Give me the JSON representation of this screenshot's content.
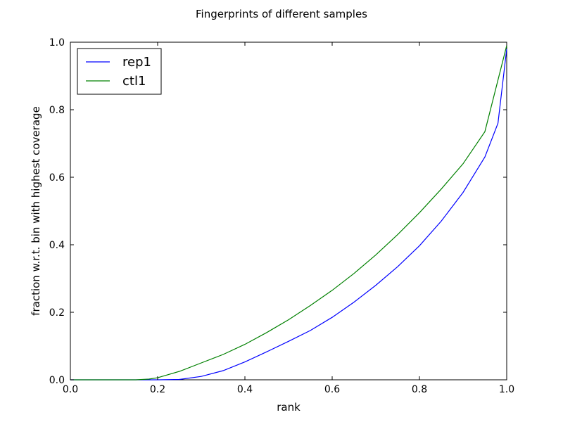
{
  "chart_data": {
    "type": "line",
    "title": "Fingerprints of different samples",
    "xlabel": "rank",
    "ylabel": "fraction w.r.t. bin with highest coverage",
    "xlim": [
      0.0,
      1.0
    ],
    "ylim": [
      0.0,
      1.0
    ],
    "xticks": [
      "0.0",
      "0.2",
      "0.4",
      "0.6",
      "0.8",
      "1.0"
    ],
    "yticks": [
      "0.0",
      "0.2",
      "0.4",
      "0.6",
      "0.8",
      "1.0"
    ],
    "grid": false,
    "legend_position": "top-left",
    "series": [
      {
        "name": "rep1",
        "color": "#0000ff",
        "x": [
          0.0,
          0.1,
          0.2,
          0.25,
          0.3,
          0.35,
          0.4,
          0.45,
          0.5,
          0.55,
          0.6,
          0.65,
          0.7,
          0.75,
          0.8,
          0.85,
          0.9,
          0.95,
          0.98,
          1.0
        ],
        "y": [
          0.0,
          0.0,
          0.0,
          0.001,
          0.01,
          0.027,
          0.053,
          0.083,
          0.114,
          0.146,
          0.185,
          0.23,
          0.28,
          0.335,
          0.397,
          0.47,
          0.555,
          0.66,
          0.76,
          0.98
        ]
      },
      {
        "name": "ctl1",
        "color": "#008000",
        "x": [
          0.0,
          0.1,
          0.15,
          0.18,
          0.2,
          0.25,
          0.3,
          0.35,
          0.4,
          0.45,
          0.5,
          0.55,
          0.6,
          0.65,
          0.7,
          0.75,
          0.8,
          0.85,
          0.9,
          0.95,
          1.0
        ],
        "y": [
          0.0,
          0.0,
          0.0,
          0.002,
          0.006,
          0.025,
          0.05,
          0.075,
          0.105,
          0.14,
          0.178,
          0.22,
          0.265,
          0.315,
          0.37,
          0.43,
          0.495,
          0.565,
          0.64,
          0.735,
          0.99
        ]
      }
    ]
  }
}
